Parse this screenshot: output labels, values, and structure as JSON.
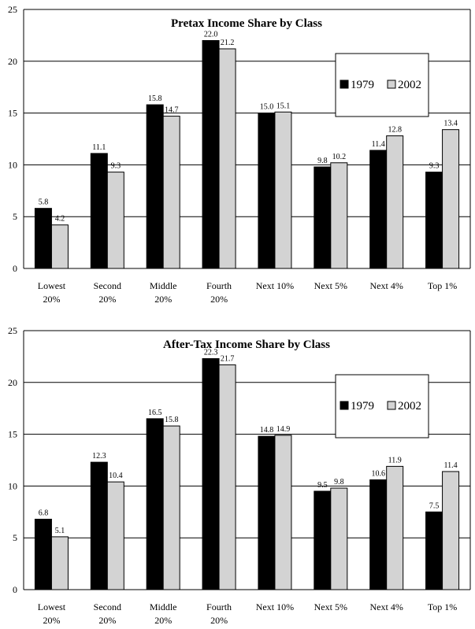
{
  "colors": {
    "s1979": "#000000",
    "s2002": "#d3d3d3",
    "grid": "#000000",
    "background": "#ffffff"
  },
  "chart_data": [
    {
      "type": "bar",
      "title": "Pretax Income Share by Class",
      "categories": [
        [
          "Lowest",
          "20%"
        ],
        [
          "Second",
          "20%"
        ],
        [
          "Middle",
          "20%"
        ],
        [
          "Fourth",
          "20%"
        ],
        [
          "Next 10%"
        ],
        [
          "Next 5%"
        ],
        [
          "Next 4%"
        ],
        [
          "Top 1%"
        ]
      ],
      "series": [
        {
          "name": "1979",
          "values": [
            5.8,
            11.1,
            15.8,
            22.0,
            15.0,
            9.8,
            11.4,
            9.3
          ],
          "labels": [
            "5.8",
            "11.1",
            "15.8",
            "22.0",
            "15.0",
            "9.8",
            "11.4",
            "9.3"
          ]
        },
        {
          "name": "2002",
          "values": [
            4.2,
            9.3,
            14.7,
            21.2,
            15.1,
            10.2,
            12.8,
            13.4
          ],
          "labels": [
            "4.2",
            "9.3",
            "14.7",
            "21.2",
            "15.1",
            "10.2",
            "12.8",
            "13.4"
          ]
        }
      ],
      "ylim": [
        0,
        25
      ],
      "yticks": [
        0,
        5,
        10,
        15,
        20,
        25
      ],
      "grid": true,
      "legend": "top-right"
    },
    {
      "type": "bar",
      "title": "After-Tax Income Share by Class",
      "categories": [
        [
          "Lowest",
          "20%"
        ],
        [
          "Second",
          "20%"
        ],
        [
          "Middle",
          "20%"
        ],
        [
          "Fourth",
          "20%"
        ],
        [
          "Next 10%"
        ],
        [
          "Next 5%"
        ],
        [
          "Next 4%"
        ],
        [
          "Top 1%"
        ]
      ],
      "series": [
        {
          "name": "1979",
          "values": [
            6.8,
            12.3,
            16.5,
            22.3,
            14.8,
            9.5,
            10.6,
            7.5
          ],
          "labels": [
            "6.8",
            "12.3",
            "16.5",
            "22.3",
            "14.8",
            "9.5",
            "10.6",
            "7.5"
          ]
        },
        {
          "name": "2002",
          "values": [
            5.1,
            10.4,
            15.8,
            21.7,
            14.9,
            9.8,
            11.9,
            11.4
          ],
          "labels": [
            "5.1",
            "10.4",
            "15.8",
            "21.7",
            "14.9",
            "9.8",
            "11.9",
            "11.4"
          ]
        }
      ],
      "ylim": [
        0,
        25
      ],
      "yticks": [
        0,
        5,
        10,
        15,
        20,
        25
      ],
      "grid": true,
      "legend": "top-right"
    }
  ]
}
